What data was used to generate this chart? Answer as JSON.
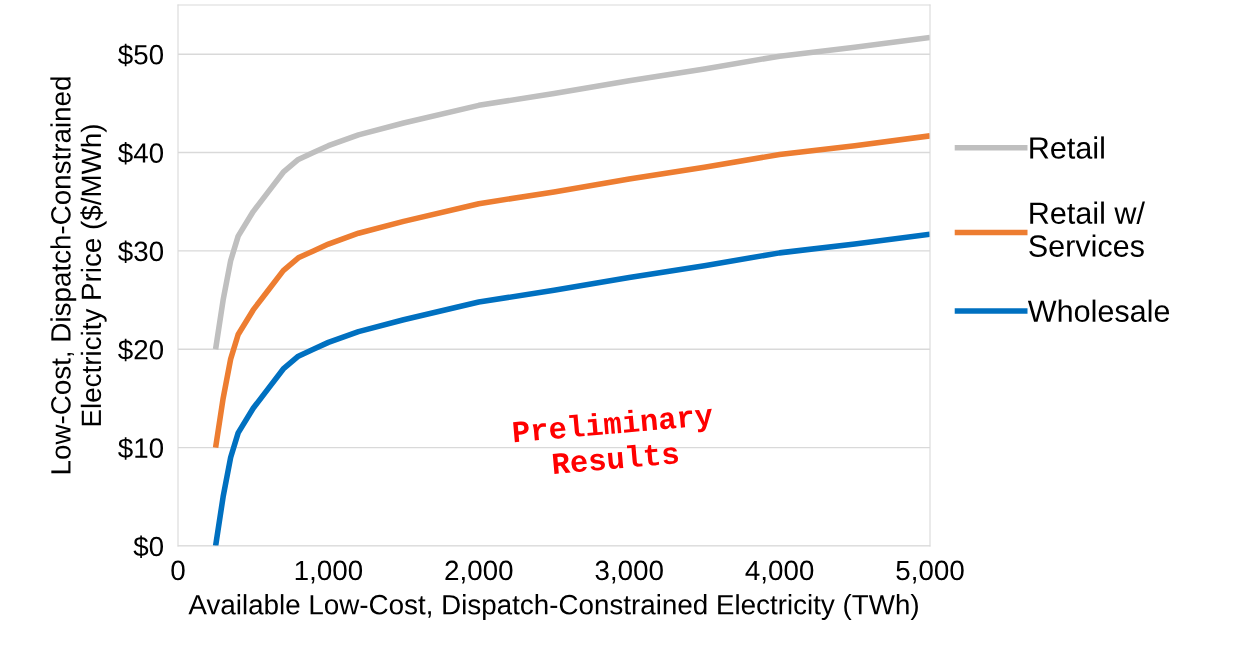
{
  "chart_data": {
    "type": "line",
    "xlabel": "Available Low-Cost, Dispatch-Constrained Electricity (TWh)",
    "ylabel": "Low-Cost, Dispatch-Constrained\nElectricity Price ($/MWh)",
    "x": [
      250,
      300,
      350,
      400,
      500,
      600,
      700,
      800,
      900,
      1000,
      1200,
      1500,
      2000,
      2500,
      3000,
      3500,
      4000,
      4500,
      5000
    ],
    "series": [
      {
        "name": "Retail",
        "color": "#bfbfbf",
        "values": [
          20,
          25,
          29,
          31.5,
          34,
          36,
          38,
          39.3,
          40,
          40.7,
          41.8,
          43,
          44.8,
          46,
          47.3,
          48.5,
          49.8,
          50.7,
          51.7
        ]
      },
      {
        "name": "Retail w/\nServices",
        "color": "#ed7d31",
        "values": [
          10,
          15,
          19,
          21.5,
          24,
          26,
          28,
          29.3,
          30,
          30.7,
          31.8,
          33,
          34.8,
          36,
          37.3,
          38.5,
          39.8,
          40.7,
          41.7
        ]
      },
      {
        "name": "Wholesale",
        "color": "#0070c0",
        "values": [
          0,
          5,
          9,
          11.5,
          14,
          16,
          18,
          19.3,
          20,
          20.7,
          21.8,
          23,
          24.8,
          26,
          27.3,
          28.5,
          29.8,
          30.7,
          31.7
        ]
      }
    ],
    "xlim": [
      0,
      5000
    ],
    "xticks": [
      0,
      {
        "value": 1000,
        "label": "1,000"
      },
      {
        "value": 2000,
        "label": "2,000"
      },
      {
        "value": 3000,
        "label": "3,000"
      },
      {
        "value": 4000,
        "label": "4,000"
      },
      {
        "value": 5000,
        "label": "5,000"
      }
    ],
    "ylim": [
      0,
      55
    ],
    "yticks": [
      {
        "value": 0,
        "label": "$0"
      },
      {
        "value": 10,
        "label": "$10"
      },
      {
        "value": 20,
        "label": "$20"
      },
      {
        "value": 30,
        "label": "$30"
      },
      {
        "value": 40,
        "label": "$40"
      },
      {
        "value": 50,
        "label": "$50"
      }
    ],
    "grid": "y",
    "legend": "right",
    "marker": "none",
    "line_style": "solid",
    "annotations": [
      "Preliminary\nResults"
    ]
  }
}
